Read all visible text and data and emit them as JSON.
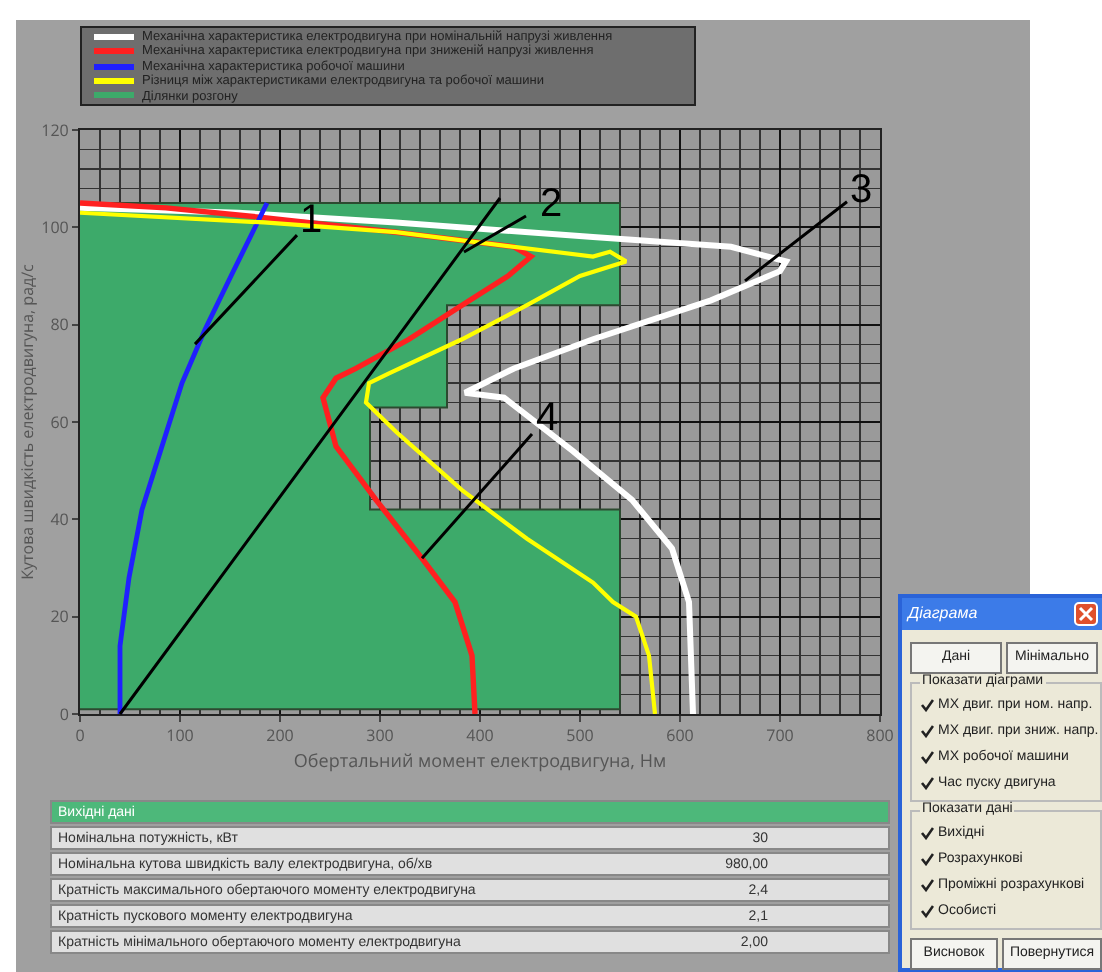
{
  "chart_data": {
    "type": "line",
    "xlabel": "Обертальний момент електродвигуна, Нм",
    "ylabel": "Кутова швидкість електродвигуна, рад/с",
    "xlim": [
      0,
      800
    ],
    "xticks": [
      0,
      100,
      200,
      300,
      400,
      500,
      600,
      700,
      800
    ],
    "ylim": [
      0,
      120
    ],
    "yticks": [
      0,
      20,
      40,
      60,
      80,
      100,
      120
    ],
    "grid": true,
    "legend": "top left",
    "line_style": "solid",
    "marker": "none",
    "series": [
      {
        "name": "Механічна характеристика електродвигуна при номінальній напрузі живлення",
        "color": "#ffffff",
        "x": [
          613,
          609,
          592,
          552,
          493,
          424,
          385,
          434,
          513,
          631,
          700,
          706,
          651,
          513,
          316,
          158,
          0
        ],
        "values": [
          0,
          23,
          34,
          44,
          54,
          65,
          66,
          71,
          77,
          85,
          91,
          93,
          96,
          98,
          101,
          103,
          104
        ]
      },
      {
        "name": "Механічна характеристика електродвигуна при зниженій напрузі живлення",
        "color": "#ff2020",
        "x": [
          395,
          392,
          375,
          342,
          296,
          256,
          243,
          256,
          276,
          329,
          382,
          428,
          451,
          434,
          316,
          184,
          86,
          0
        ],
        "values": [
          0,
          12,
          23,
          32,
          44,
          55,
          65,
          69,
          71,
          77,
          84,
          90,
          94,
          96,
          99,
          102,
          104,
          105
        ]
      },
      {
        "name": "Механічна характеристика робочої машини",
        "color": "#2020ff",
        "x": [
          40,
          40,
          49,
          62,
          82,
          102,
          125,
          151,
          187
        ],
        "values": [
          0,
          14,
          28,
          42,
          55,
          68,
          79,
          90,
          105
        ]
      },
      {
        "name": "Різниця між характеристиками електродвигуна та  робочої машини",
        "color": "#ffff00",
        "x": [
          575,
          569,
          556,
          533,
          513,
          447,
          382,
          316,
          286,
          289,
          309,
          382,
          447,
          500,
          546,
          530,
          513,
          316,
          184,
          0
        ],
        "values": [
          0,
          12,
          20,
          23,
          27,
          36,
          46,
          58,
          64,
          68,
          70,
          77,
          84,
          90,
          93,
          95,
          94,
          99,
          101,
          103
        ]
      },
      {
        "name": "Ділянки розгону",
        "type": "area",
        "color": "#3daa6a",
        "x": [
          0,
          540,
          540,
          290,
          290,
          367,
          367,
          540,
          540,
          0
        ],
        "values": [
          1,
          1,
          42,
          42,
          63,
          63,
          84,
          84,
          105,
          105
        ]
      }
    ],
    "annotations": [
      {
        "text": "1",
        "x": 115,
        "y": 76
      },
      "2",
      {
        "text": "3",
        "x": 665,
        "y": 89
      },
      {
        "text": "4",
        "x": 342,
        "y": 32
      },
      "Вихідні дані",
      "Номінальна потужність, кВт",
      "30",
      "Номінальна кутова швидкість валу електродвигуна, об/хв",
      "980,00",
      "Кратність максимального обертаючого моменту електродвигуна",
      "2,4",
      "Кратність пускового моменту електродвигуна",
      "2,1",
      "Кратність мінімального обертаючого моменту електродвигуна",
      "2,00",
      "Діаграма",
      "Дані",
      "Мінімально",
      "Показати діаграми",
      "МХ двиг. при ном. напр.",
      "МХ двиг. при зниж. напр.",
      "МХ робочої машини",
      "Час пуску двигуна",
      "Показати дані",
      "Вихідні",
      "Розрахункові",
      "Проміжні розрахункові",
      "Особисті",
      "Висновок",
      "Повернутися"
    ]
  }
}
